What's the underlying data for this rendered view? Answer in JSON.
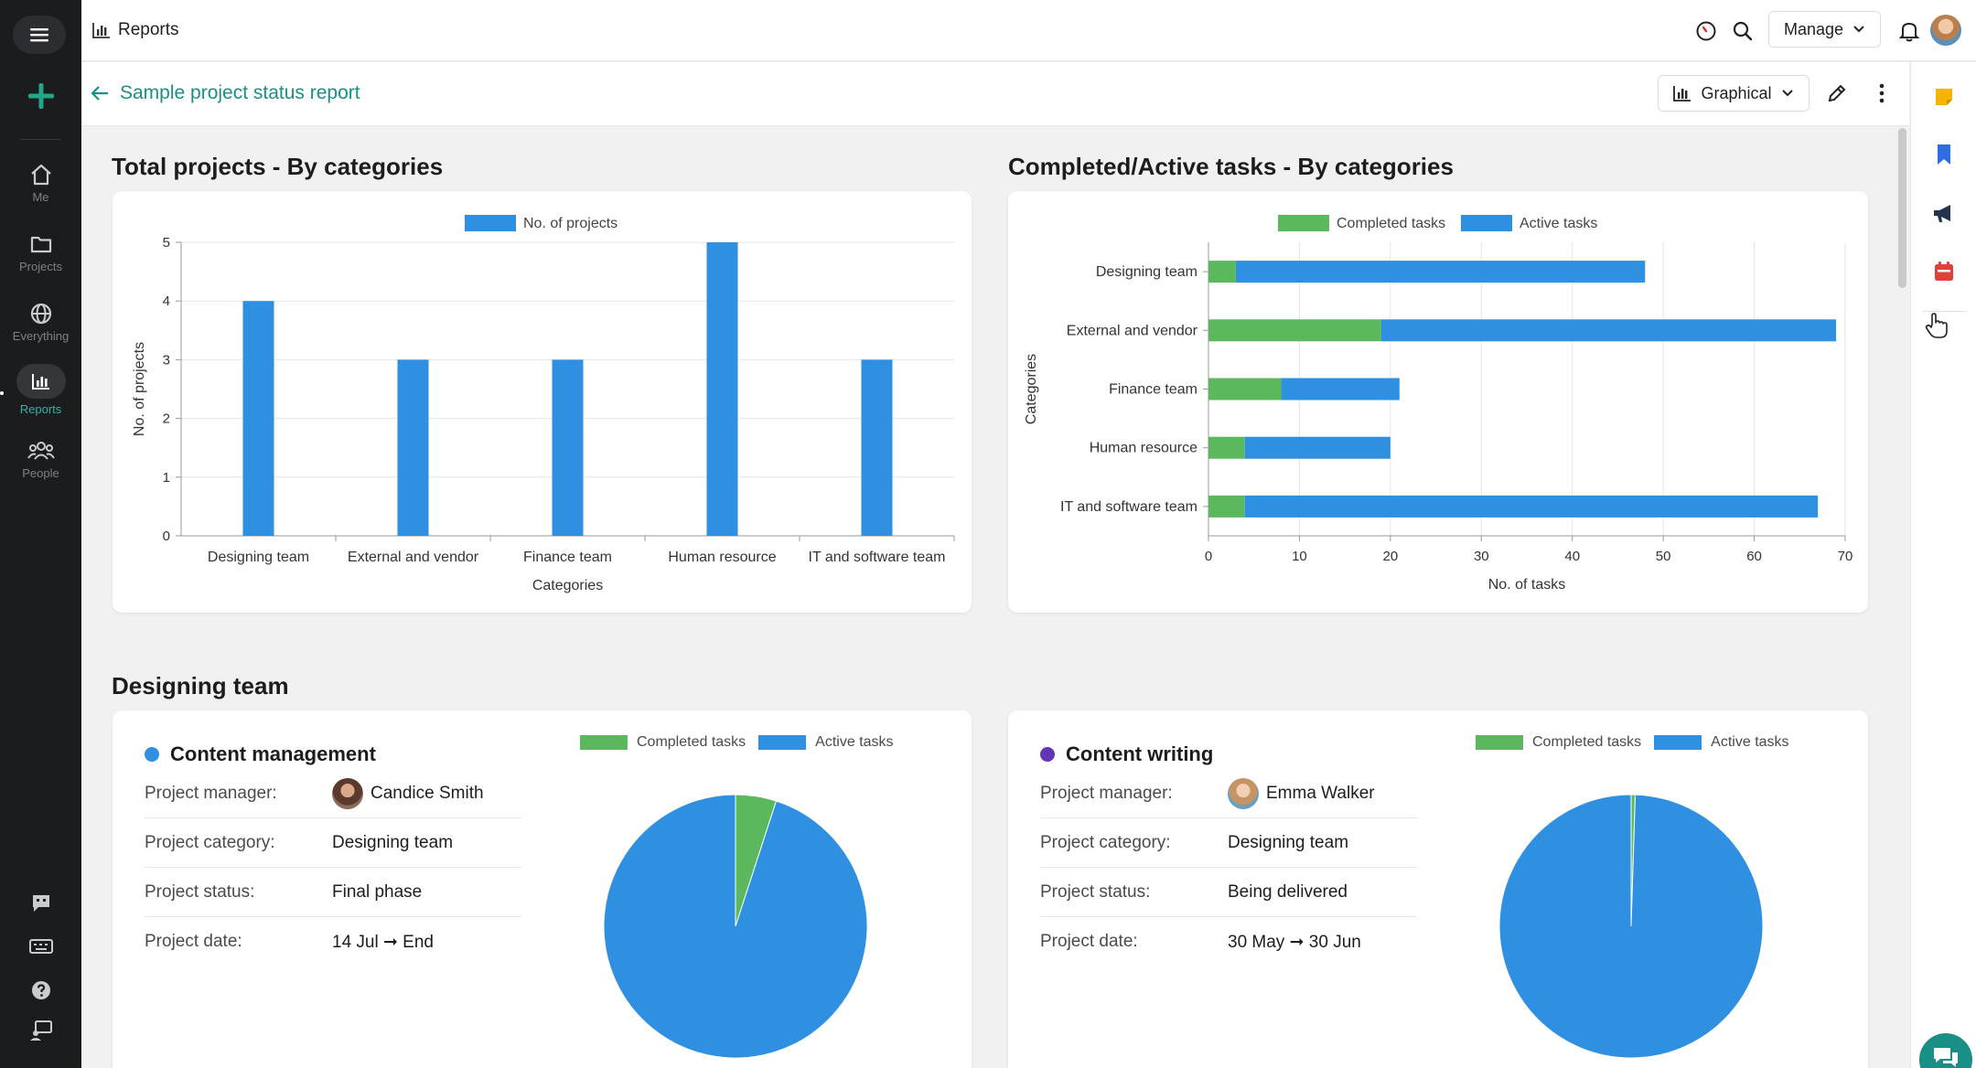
{
  "app": {
    "section_title": "Reports",
    "manage_label": "Manage"
  },
  "nav": {
    "items": [
      {
        "label": "Me",
        "icon": "home-icon"
      },
      {
        "label": "Projects",
        "icon": "folder-icon"
      },
      {
        "label": "Everything",
        "icon": "globe-icon"
      },
      {
        "label": "Reports",
        "icon": "bar-chart-icon"
      },
      {
        "label": "People",
        "icon": "people-icon"
      }
    ]
  },
  "report": {
    "title": "Sample project status report",
    "view_label": "Graphical"
  },
  "colors": {
    "completed": "#5cb85c",
    "active": "#2f8fe0",
    "accent": "#1a8f86",
    "project_dot_1": "#2f8fe0",
    "project_dot_2": "#6236b4"
  },
  "sections": {
    "total_projects_title": "Total projects - By categories",
    "tasks_title": "Completed/Active tasks - By categories",
    "group_title": "Designing team"
  },
  "chart_data": [
    {
      "type": "bar",
      "legend": [
        "No. of projects"
      ],
      "categories": [
        "Designing team",
        "External and vendor",
        "Finance team",
        "Human resource",
        "IT and software team"
      ],
      "series": [
        {
          "name": "No. of projects",
          "values": [
            4,
            3,
            3,
            5,
            3
          ]
        }
      ],
      "xlabel": "Categories",
      "ylabel": "No. of projects",
      "ylim": [
        0,
        5
      ],
      "yticks": [
        "0",
        "1",
        "2",
        "3",
        "4",
        "5"
      ],
      "grid": true,
      "legend_position": "top"
    },
    {
      "type": "bar",
      "orientation": "horizontal",
      "stacked": true,
      "legend": [
        "Completed tasks",
        "Active tasks"
      ],
      "categories": [
        "Designing team",
        "External and vendor",
        "Finance team",
        "Human resource",
        "IT and software team"
      ],
      "series": [
        {
          "name": "Completed tasks",
          "values": [
            3,
            19,
            8,
            4,
            4
          ]
        },
        {
          "name": "Active tasks",
          "values": [
            45,
            50,
            13,
            16,
            63
          ]
        }
      ],
      "xlabel": "No. of tasks",
      "ylabel": "Categories",
      "xlim": [
        0,
        70
      ],
      "xticks": [
        "0",
        "10",
        "20",
        "30",
        "40",
        "50",
        "60",
        "70"
      ],
      "grid": true,
      "legend_position": "top"
    },
    {
      "type": "pie",
      "legend": [
        "Completed tasks",
        "Active tasks"
      ],
      "labels": [
        "Completed tasks",
        "Active tasks"
      ],
      "values": [
        5,
        95
      ]
    },
    {
      "type": "pie",
      "legend": [
        "Completed tasks",
        "Active tasks"
      ],
      "labels": [
        "Completed tasks",
        "Active tasks"
      ],
      "values": [
        0.5,
        99.5
      ]
    }
  ],
  "projects": [
    {
      "name": "Content management",
      "rows": [
        {
          "key": "Project manager:",
          "value": "Candice Smith"
        },
        {
          "key": "Project category:",
          "value": "Designing team"
        },
        {
          "key": "Project status:",
          "value": "Final phase"
        },
        {
          "key": "Project date:",
          "value": "14 Jul ➞ End"
        }
      ],
      "legend": [
        "Completed tasks",
        "Active tasks"
      ]
    },
    {
      "name": "Content writing",
      "rows": [
        {
          "key": "Project manager:",
          "value": "Emma Walker"
        },
        {
          "key": "Project category:",
          "value": "Designing team"
        },
        {
          "key": "Project status:",
          "value": "Being delivered"
        },
        {
          "key": "Project date:",
          "value": "30 May ➞ 30 Jun"
        }
      ],
      "legend": [
        "Completed tasks",
        "Active tasks"
      ]
    }
  ]
}
